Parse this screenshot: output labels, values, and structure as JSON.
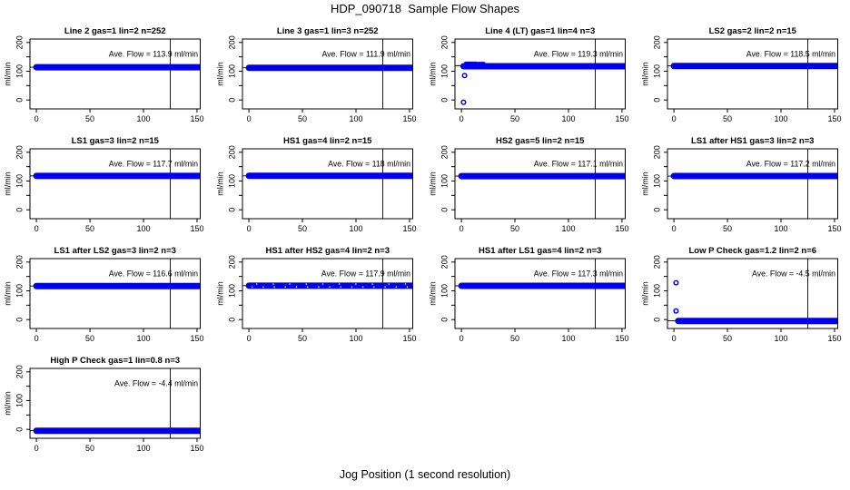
{
  "page": {
    "title": "HDP_090718  Sample Flow Shapes",
    "xlabel": "Jog Position (1 second resolution)"
  },
  "chart_data": {
    "type": "scatter",
    "title": "HDP_090718  Sample Flow Shapes",
    "xlabel": "Jog Position (1 second resolution)",
    "ylabel": "ml/min",
    "layout": {
      "rows": 4,
      "cols": 4,
      "grid": false,
      "box": true
    },
    "xlim": [
      -6,
      153
    ],
    "ylim": [
      -31,
      212
    ],
    "x_ticks": [
      0,
      50,
      100,
      150
    ],
    "y_ticks_labeled": [
      0,
      100,
      200
    ],
    "y_ticks_all": [
      0,
      50,
      100,
      150,
      200
    ],
    "vline_x": 125,
    "point_color": "#0000EE",
    "line_color": "#000000",
    "plots": [
      {
        "title": "Line 2 gas=1 lin=2 n=252",
        "ave_flow": 113.9,
        "ave_label": "Ave. Flow =  113.9  ml/min",
        "band": {
          "x0": 0,
          "x1": 152,
          "y": 113.9
        },
        "outliers": [],
        "segments": [],
        "speckled": false
      },
      {
        "title": "Line 3 gas=1 lin=3 n=252",
        "ave_flow": 111.9,
        "ave_label": "Ave. Flow =  111.9  ml/min",
        "band": {
          "x0": 0,
          "x1": 152,
          "y": 111.9
        },
        "outliers": [],
        "segments": [],
        "speckled": false
      },
      {
        "title": "Line 4 (LT) gas=1 lin=4 n=3",
        "ave_flow": 119.3,
        "ave_label": "Ave. Flow =  119.3  ml/min",
        "band": {
          "x0": 2,
          "x1": 152,
          "y": 117.5
        },
        "outliers": [
          {
            "x": 2,
            "y": -8
          },
          {
            "x": 3,
            "y": 85
          }
        ],
        "segments": [
          {
            "x0": 4,
            "x1": 14,
            "y": 128
          },
          {
            "x0": 16,
            "x1": 21,
            "y": 127
          }
        ],
        "speckled": false
      },
      {
        "title": "LS2 gas=2 lin=2 n=15",
        "ave_flow": 118.5,
        "ave_label": "Ave. Flow =  118.5  ml/min",
        "band": {
          "x0": 0,
          "x1": 152,
          "y": 118
        },
        "outliers": [],
        "segments": [],
        "speckled": false
      },
      {
        "title": "LS1 gas=3 lin=2 n=15",
        "ave_flow": 117.7,
        "ave_label": "Ave. Flow =  117.7  ml/min",
        "band": {
          "x0": 0,
          "x1": 152,
          "y": 117.7
        },
        "outliers": [],
        "segments": [],
        "speckled": false
      },
      {
        "title": "HS1 gas=4 lin=2 n=15",
        "ave_flow": 118,
        "ave_label": "Ave. Flow =  118  ml/min",
        "band": {
          "x0": 0,
          "x1": 152,
          "y": 118
        },
        "outliers": [],
        "segments": [],
        "speckled": false
      },
      {
        "title": "HS2 gas=5 lin=2 n=15",
        "ave_flow": 117.1,
        "ave_label": "Ave. Flow =  117.1  ml/min",
        "band": {
          "x0": 0,
          "x1": 152,
          "y": 117.1
        },
        "outliers": [],
        "segments": [],
        "speckled": false
      },
      {
        "title": "LS1 after HS1 gas=3 lin=2 n=3",
        "ave_flow": 117.2,
        "ave_label": "Ave. Flow =  117.2  ml/min",
        "band": {
          "x0": 0,
          "x1": 152,
          "y": 117.2
        },
        "outliers": [],
        "segments": [],
        "speckled": false
      },
      {
        "title": "LS1 after LS2 gas=3 lin=2 n=3",
        "ave_flow": 116.6,
        "ave_label": "Ave. Flow =  116.6  ml/min",
        "band": {
          "x0": 0,
          "x1": 152,
          "y": 116.6
        },
        "outliers": [],
        "segments": [],
        "speckled": false
      },
      {
        "title": "HS1 after HS2 gas=4 lin=2 n=3",
        "ave_flow": 117.9,
        "ave_label": "Ave. Flow =  117.9  ml/min",
        "band": {
          "x0": 0,
          "x1": 152,
          "y": 117.9
        },
        "outliers": [],
        "segments": [],
        "speckled": true
      },
      {
        "title": "HS1 after LS1 gas=4 lin=2 n=3",
        "ave_flow": 117.3,
        "ave_label": "Ave. Flow =  117.3  ml/min",
        "band": {
          "x0": 0,
          "x1": 152,
          "y": 117.3
        },
        "outliers": [],
        "segments": [],
        "speckled": false
      },
      {
        "title": "Low P Check gas=1.2 lin=2 n=6",
        "ave_flow": -4.5,
        "ave_label": "Ave. Flow =  -4.5  ml/min",
        "band": {
          "x0": 4,
          "x1": 152,
          "y": -5
        },
        "outliers": [
          {
            "x": 2,
            "y": 128
          },
          {
            "x": 2,
            "y": 30
          }
        ],
        "segments": [],
        "speckled": false
      },
      {
        "title": "High P Check gas=1 lin=0.8 n=3",
        "ave_flow": -4.4,
        "ave_label": "Ave. Flow =  -4.4  ml/min",
        "band": {
          "x0": 0,
          "x1": 152,
          "y": -5
        },
        "outliers": [],
        "segments": [],
        "speckled": false
      }
    ]
  }
}
